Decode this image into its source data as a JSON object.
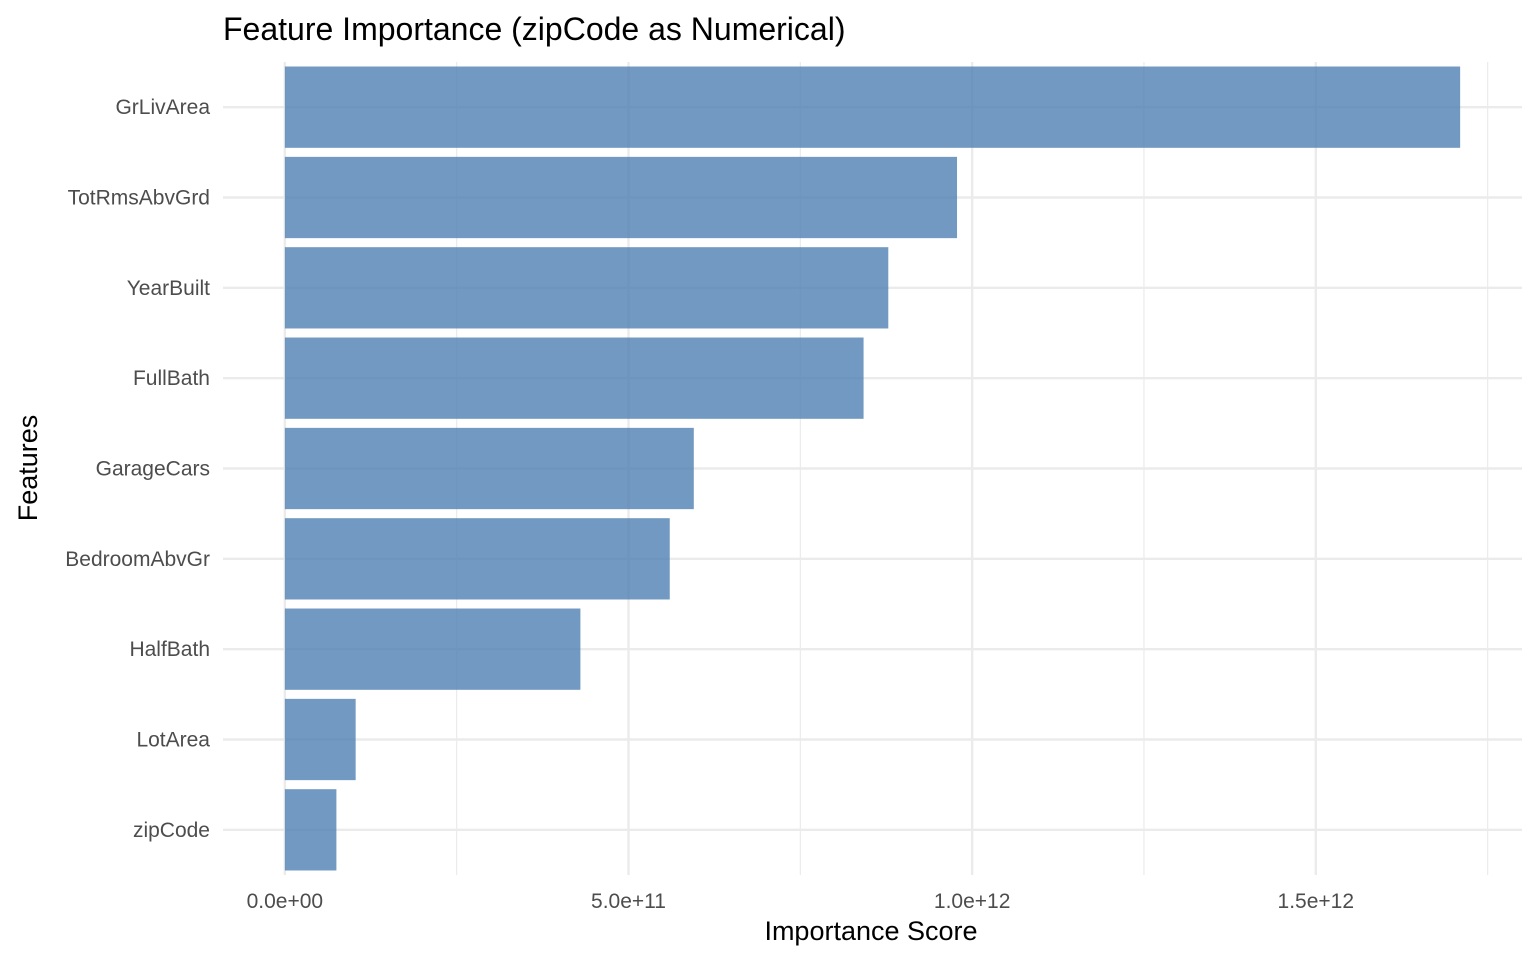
{
  "chart_data": {
    "type": "bar",
    "orientation": "horizontal",
    "title": "Feature Importance (zipCode as Numerical)",
    "xlabel": "Importance Score",
    "ylabel": "Features",
    "categories": [
      "GrLivArea",
      "TotRmsAbvGrd",
      "YearBuilt",
      "FullBath",
      "GarageCars",
      "BedroomAbvGr",
      "HalfBath",
      "LotArea",
      "zipCode"
    ],
    "values": [
      1710000000000.0,
      978000000000.0,
      878000000000.0,
      842000000000.0,
      595000000000.0,
      560000000000.0,
      430000000000.0,
      103000000000.0,
      75000000000.0
    ],
    "xlim": [
      -90000000000.0,
      1800000000000.0
    ],
    "xticks": [
      0,
      500000000000.0,
      1000000000000.0,
      1500000000000.0
    ],
    "xtick_labels": [
      "0.0e+00",
      "5.0e+11",
      "1.0e+12",
      "1.5e+12"
    ],
    "grid": true,
    "legend": "none",
    "colors": {
      "bar": "#4f7fb2",
      "grid": "#ebebeb",
      "background": "#ffffff"
    }
  }
}
